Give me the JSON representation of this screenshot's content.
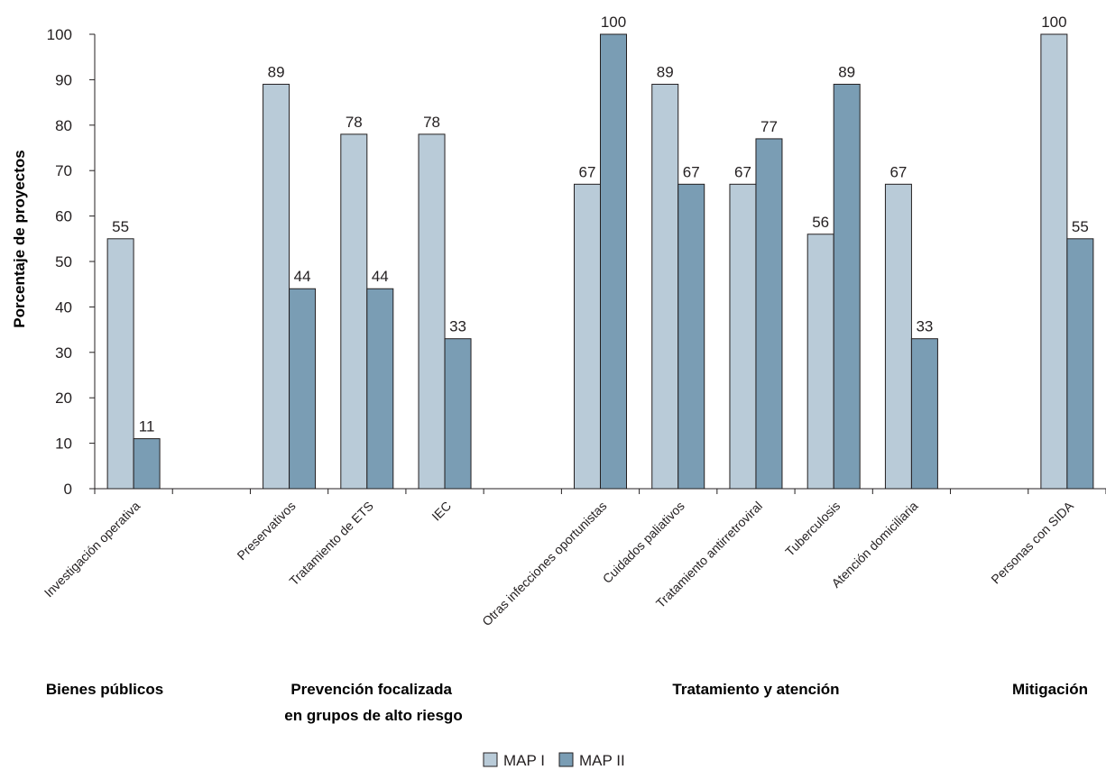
{
  "chart_data": {
    "type": "bar",
    "ylabel": "Porcentaje de proyectos",
    "xlabel": "",
    "ylim": [
      0,
      100
    ],
    "yticks": [
      0,
      10,
      20,
      30,
      40,
      50,
      60,
      70,
      80,
      90,
      100
    ],
    "grid": false,
    "legend_position": "bottom-center",
    "colors": {
      "MAP I": "#b9cbd8",
      "MAP II": "#7a9db4"
    },
    "categories": [
      "Investigación operativa",
      "",
      "Preservativos",
      "Tratamiento de ETS",
      "IEC",
      "",
      "Otras infecciones oportunistas",
      "Cuidados paliativos",
      "Tratamiento antirretroviral",
      "Tuberculosis",
      "Atención domiciliaria",
      "",
      "Personas con SIDA"
    ],
    "series": [
      {
        "name": "MAP I",
        "values": [
          55,
          null,
          89,
          78,
          78,
          null,
          67,
          89,
          67,
          56,
          67,
          null,
          100
        ]
      },
      {
        "name": "MAP II",
        "values": [
          11,
          null,
          44,
          44,
          33,
          null,
          100,
          67,
          77,
          89,
          33,
          null,
          55
        ]
      }
    ],
    "groups": [
      {
        "lines": [
          "Bienes públicos"
        ]
      },
      {
        "lines": [
          "Prevención focalizada",
          "en grupos de alto riesgo"
        ]
      },
      {
        "lines": [
          "Tratamiento y atención"
        ]
      },
      {
        "lines": [
          "Mitigación"
        ]
      }
    ]
  }
}
